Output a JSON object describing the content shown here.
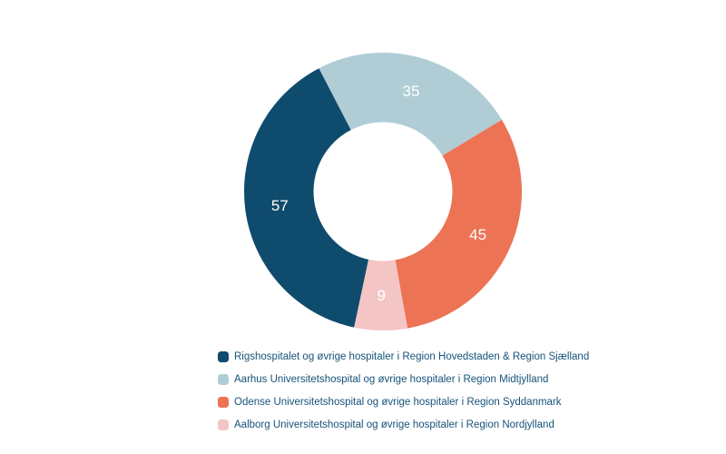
{
  "chart_data": {
    "type": "pie",
    "variant": "donut",
    "title": "",
    "segments": [
      {
        "label": "Rigshospitalet og øvrige hospitaler i Region Hovedstaden & Region Sjælland",
        "value": 57,
        "color": "#0f4b6d"
      },
      {
        "label": "Aarhus Universitetshospital og øvrige hospitaler i Region Midtjylland",
        "value": 35,
        "color": "#b0cdd6"
      },
      {
        "label": "Odense Universitetshospital og øvrige hospitaler i Region Syddanmark",
        "value": 45,
        "color": "#ed7355"
      },
      {
        "label": "Aalborg Universitetshospital og øvrige hospitaler i Region Nordjylland",
        "value": 9,
        "color": "#f3c6c5"
      }
    ],
    "layout": {
      "rotation_deg": 192,
      "cutout_ratio": 0.5,
      "legend_position": "bottom-left",
      "grid": false,
      "background": "#ffffff",
      "value_label_color": "#ffffff",
      "legend_text_color": "#16537a"
    }
  }
}
